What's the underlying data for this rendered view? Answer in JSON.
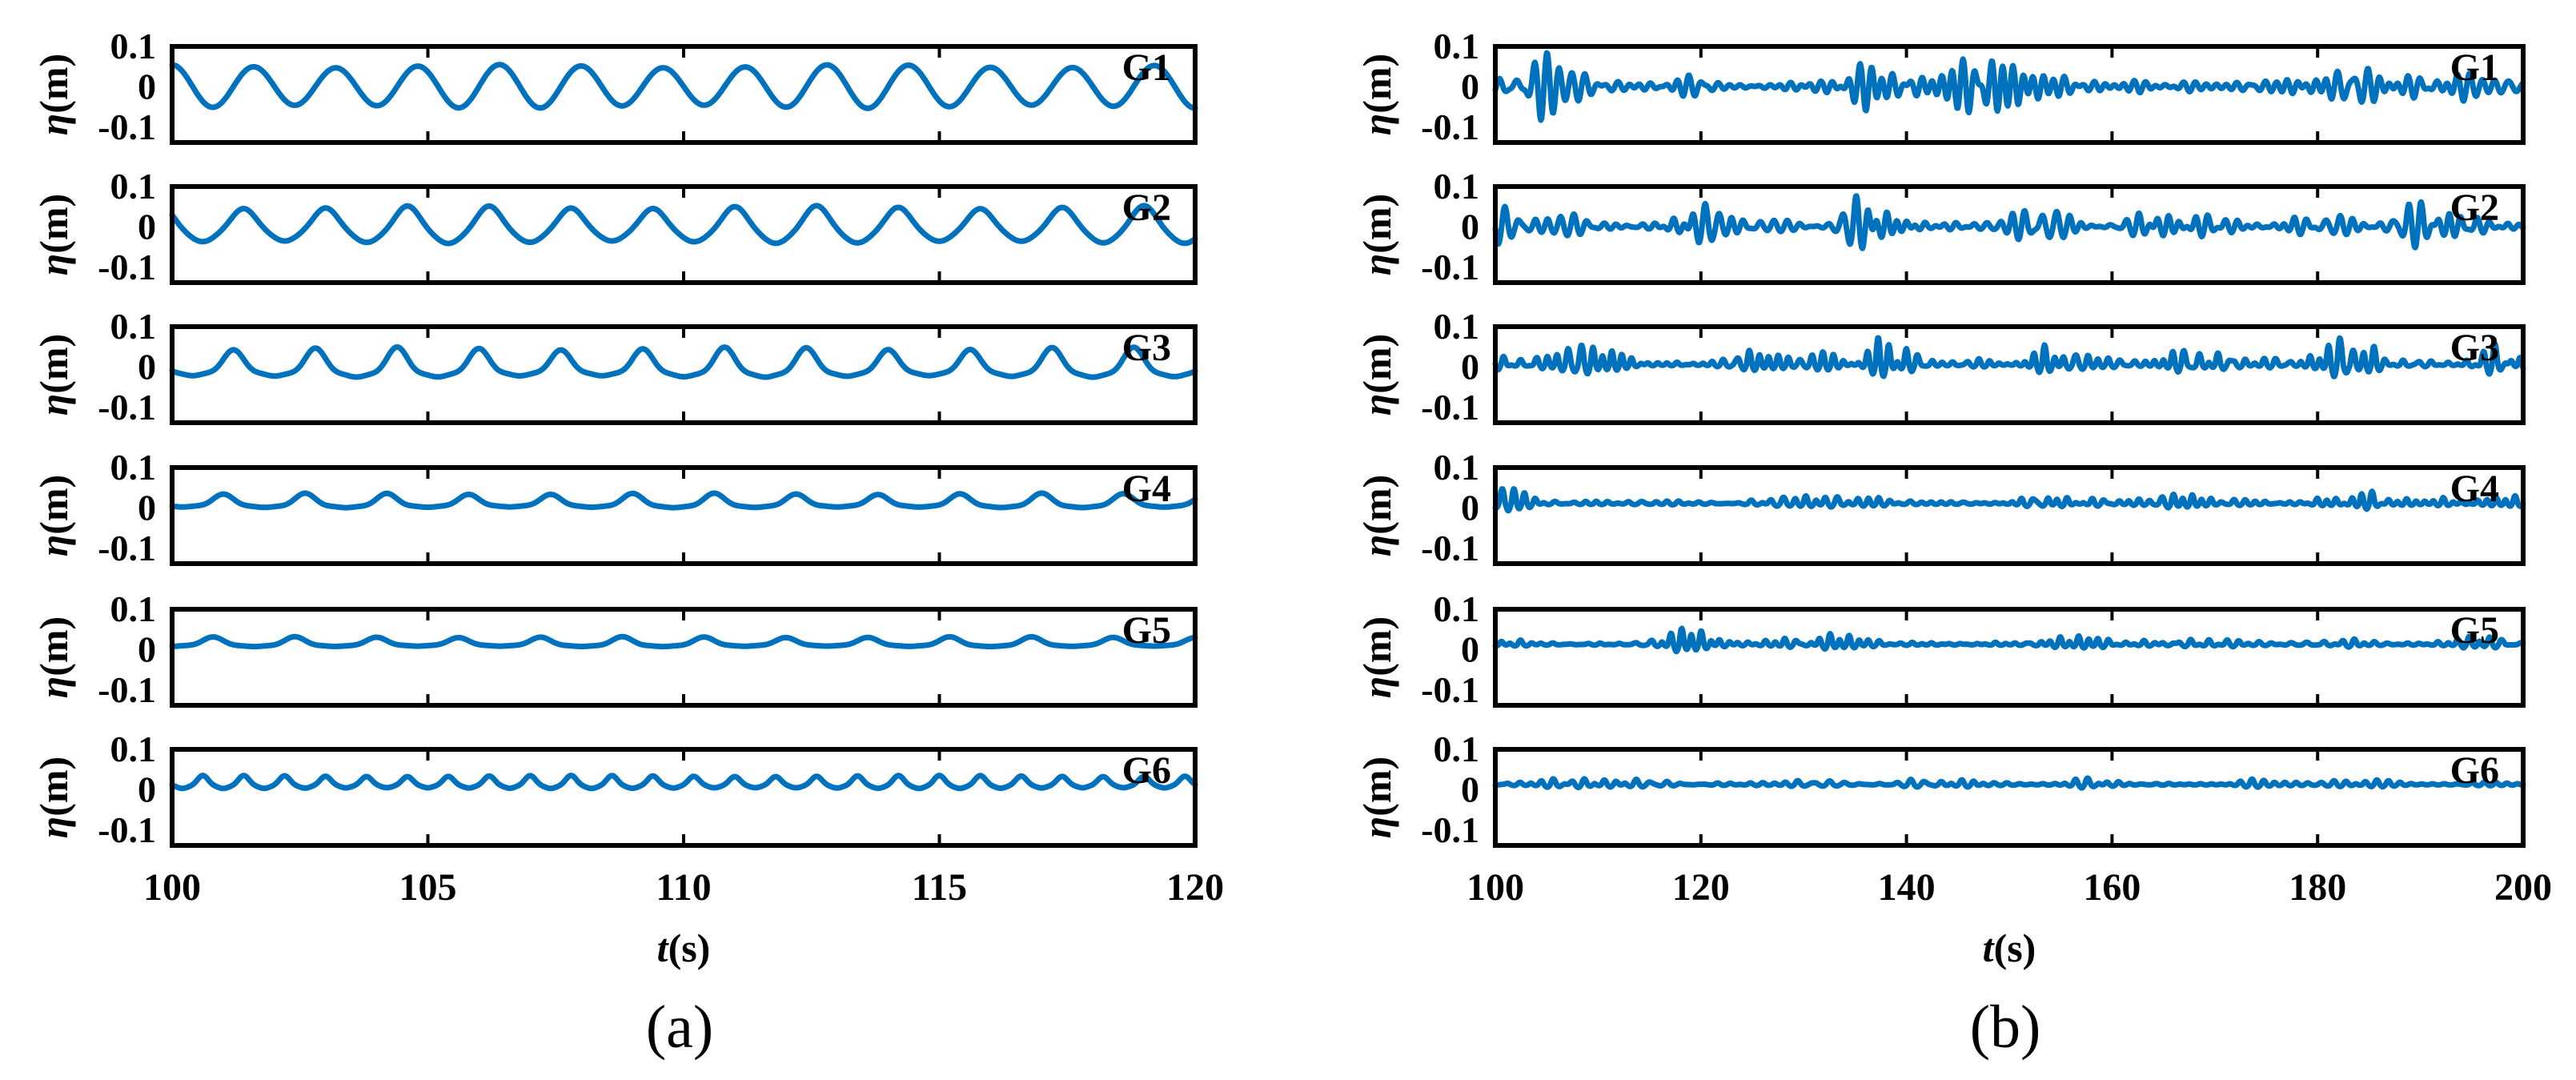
{
  "colors": {
    "line": "#0072BD",
    "axis": "#000000"
  },
  "chart_data": [
    {
      "type": "line",
      "panel_label": "(a)",
      "xlabel": {
        "symbol": "t",
        "unit": "(s)"
      },
      "ylabel": {
        "symbol": "η",
        "unit": "(m)"
      },
      "xlim": [
        100,
        120
      ],
      "xticks": [
        "100",
        "105",
        "110",
        "115",
        "120"
      ],
      "ylim": [
        -0.1,
        0.1
      ],
      "yticks": [
        "0.1",
        "0",
        "-0.1"
      ],
      "grid": false,
      "series": [
        {
          "name": "G1",
          "kind": "regular",
          "offset": 0.0,
          "amplitude": 0.05,
          "asymmetry": 0.0,
          "period": 1.6
        },
        {
          "name": "G2",
          "kind": "regular",
          "offset": 0.0,
          "amplitude": 0.048,
          "asymmetry": 0.25,
          "period": 1.6
        },
        {
          "name": "G3",
          "kind": "regular",
          "offset": 0.0,
          "amplitude": 0.045,
          "asymmetry": 0.75,
          "period": 1.6
        },
        {
          "name": "G4",
          "kind": "regular",
          "offset": 0.012,
          "amplitude": 0.022,
          "asymmetry": 0.8,
          "period": 1.6
        },
        {
          "name": "G5",
          "kind": "regular",
          "offset": 0.015,
          "amplitude": 0.015,
          "asymmetry": 0.8,
          "period": 1.6
        },
        {
          "name": "G6",
          "kind": "regular",
          "offset": 0.015,
          "amplitude": 0.018,
          "asymmetry": 0.5,
          "period": 0.8
        }
      ]
    },
    {
      "type": "line",
      "panel_label": "(b)",
      "xlabel": {
        "symbol": "t",
        "unit": "(s)"
      },
      "ylabel": {
        "symbol": "η",
        "unit": "(m)"
      },
      "xlim": [
        100,
        200
      ],
      "xticks": [
        "100",
        "120",
        "140",
        "160",
        "180",
        "200"
      ],
      "ylim": [
        -0.1,
        0.1
      ],
      "yticks": [
        "0.1",
        "0",
        "-0.1"
      ],
      "grid": false,
      "series": [
        {
          "name": "G1",
          "kind": "irregular",
          "offset": 0.0,
          "amplitude": 0.04,
          "asymmetry": 0.0,
          "period": 1.3
        },
        {
          "name": "G2",
          "kind": "irregular",
          "offset": 0.0,
          "amplitude": 0.035,
          "asymmetry": 0.2,
          "period": 1.3
        },
        {
          "name": "G3",
          "kind": "irregular",
          "offset": 0.005,
          "amplitude": 0.03,
          "asymmetry": 0.6,
          "period": 1.3
        },
        {
          "name": "G4",
          "kind": "irregular",
          "offset": 0.01,
          "amplitude": 0.015,
          "asymmetry": 0.6,
          "period": 1.3
        },
        {
          "name": "G5",
          "kind": "irregular",
          "offset": 0.012,
          "amplitude": 0.012,
          "asymmetry": 0.6,
          "period": 1.3
        },
        {
          "name": "G6",
          "kind": "irregular",
          "offset": 0.012,
          "amplitude": 0.01,
          "asymmetry": 0.5,
          "period": 1.3
        }
      ]
    }
  ]
}
